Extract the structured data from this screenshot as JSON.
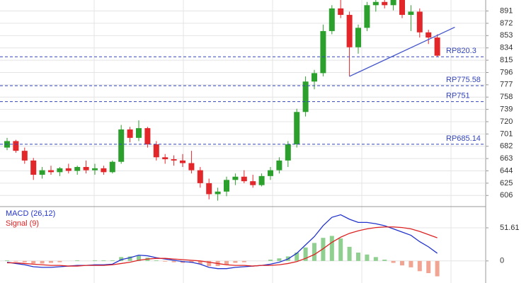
{
  "chart_data": [
    {
      "type": "candlestick",
      "up_color": "#2ca02c",
      "down_color": "#e3262a",
      "ohlc": [
        [
          680,
          695,
          676,
          690
        ],
        [
          690,
          692,
          672,
          675
        ],
        [
          675,
          680,
          655,
          660
        ],
        [
          660,
          664,
          630,
          638
        ],
        [
          638,
          650,
          632,
          645
        ],
        [
          645,
          652,
          638,
          642
        ],
        [
          642,
          650,
          636,
          648
        ],
        [
          648,
          655,
          640,
          644
        ],
        [
          644,
          652,
          638,
          650
        ],
        [
          650,
          660,
          640,
          645
        ],
        [
          645,
          655,
          638,
          648
        ],
        [
          648,
          652,
          638,
          642
        ],
        [
          642,
          660,
          640,
          658
        ],
        [
          658,
          715,
          655,
          708
        ],
        [
          708,
          712,
          688,
          695
        ],
        [
          695,
          722,
          690,
          710
        ],
        [
          710,
          712,
          680,
          685
        ],
        [
          685,
          690,
          660,
          665
        ],
        [
          665,
          670,
          655,
          662
        ],
        [
          662,
          668,
          652,
          660
        ],
        [
          660,
          670,
          650,
          656
        ],
        [
          656,
          675,
          640,
          645
        ],
        [
          645,
          650,
          618,
          625
        ],
        [
          625,
          632,
          600,
          608
        ],
        [
          608,
          618,
          598,
          612
        ],
        [
          612,
          635,
          605,
          630
        ],
        [
          630,
          640,
          622,
          635
        ],
        [
          635,
          645,
          625,
          628
        ],
        [
          628,
          638,
          618,
          622
        ],
        [
          622,
          640,
          620,
          636
        ],
        [
          636,
          650,
          630,
          645
        ],
        [
          645,
          665,
          640,
          660
        ],
        [
          660,
          690,
          650,
          685
        ],
        [
          685,
          740,
          680,
          735
        ],
        [
          735,
          790,
          728,
          782
        ],
        [
          782,
          800,
          770,
          795
        ],
        [
          795,
          870,
          790,
          860
        ],
        [
          860,
          900,
          855,
          895
        ],
        [
          895,
          910,
          880,
          885
        ],
        [
          885,
          890,
          790,
          835
        ],
        [
          835,
          870,
          825,
          865
        ],
        [
          865,
          905,
          860,
          900
        ],
        [
          900,
          912,
          890,
          905
        ],
        [
          905,
          912,
          895,
          900
        ],
        [
          900,
          912,
          892,
          908
        ],
        [
          908,
          912,
          880,
          885
        ],
        [
          885,
          900,
          860,
          890
        ],
        [
          890,
          895,
          850,
          858
        ],
        [
          858,
          862,
          840,
          850
        ],
        [
          850,
          855,
          820,
          822
        ]
      ],
      "ylim": [
        591,
        908
      ],
      "yticks": [
        606,
        625,
        644,
        663,
        682,
        701,
        720,
        739,
        758,
        777,
        796,
        815,
        834,
        853,
        872,
        891
      ],
      "hlines": [
        {
          "value": 820.3,
          "label": "RP820.3"
        },
        {
          "value": 775.58,
          "label": "RP775.58"
        },
        {
          "value": 751,
          "label": "RP751"
        },
        {
          "value": 685.14,
          "label": "RP685.14"
        }
      ],
      "hline_color": "#3344bb",
      "trendline": {
        "x": [
          39,
          51
        ],
        "y": [
          790,
          866
        ],
        "color": "#4455cc"
      },
      "grid": true
    },
    {
      "type": "macd",
      "series": [
        {
          "name": "MACD (26,12)",
          "color": "#2233cc",
          "values": [
            -2,
            -4,
            -6,
            -9,
            -10,
            -10,
            -9,
            -8,
            -7,
            -7,
            -6,
            -6,
            -5,
            2,
            5,
            9,
            8,
            5,
            3,
            1,
            -1,
            -2,
            -5,
            -10,
            -12,
            -12,
            -10,
            -9,
            -8,
            -7,
            -5,
            -2,
            3,
            12,
            25,
            38,
            55,
            68,
            72,
            65,
            60,
            60,
            58,
            55,
            50,
            45,
            40,
            30,
            22,
            12
          ]
        },
        {
          "name": "Signal (9)",
          "color": "#dd2222",
          "values": [
            -3,
            -3,
            -4,
            -5,
            -6,
            -7,
            -7,
            -8,
            -8,
            -7,
            -7,
            -7,
            -6,
            -4,
            -2,
            1,
            3,
            4,
            4,
            3,
            2,
            1,
            0,
            -2,
            -4,
            -6,
            -7,
            -7,
            -8,
            -7,
            -7,
            -6,
            -4,
            -1,
            4,
            10,
            19,
            29,
            37,
            43,
            47,
            50,
            52,
            53,
            53,
            52,
            50,
            46,
            41,
            36
          ]
        }
      ],
      "histogram": {
        "pos_color": "#8fcf8f",
        "neg_color": "#f2a493",
        "values": [
          1,
          -1,
          -2,
          -4,
          -4,
          -3,
          -2,
          0,
          1,
          0,
          1,
          1,
          1,
          6,
          7,
          8,
          5,
          1,
          -1,
          -2,
          -3,
          -3,
          -5,
          -8,
          -8,
          -6,
          -3,
          -2,
          0,
          0,
          2,
          4,
          7,
          13,
          21,
          28,
          36,
          39,
          35,
          22,
          13,
          10,
          6,
          2,
          -3,
          -7,
          -10,
          -16,
          -19,
          -24
        ]
      },
      "ylim": [
        -34.4,
        80.3
      ],
      "yticks": [
        0,
        51.61
      ],
      "grid": true
    }
  ]
}
